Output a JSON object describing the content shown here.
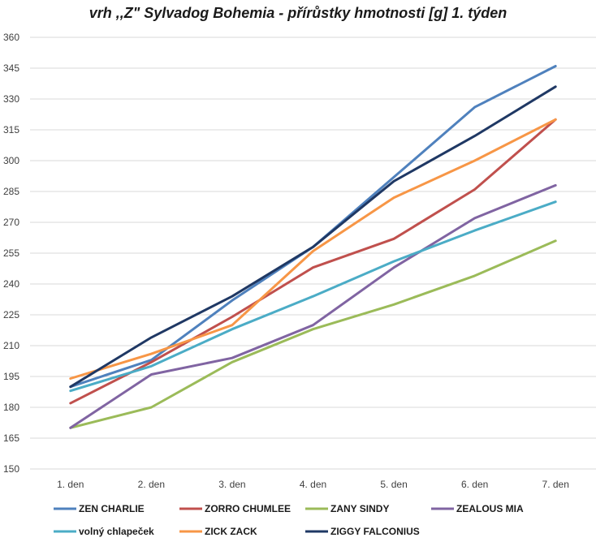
{
  "chart_data": {
    "type": "line",
    "title": "vrh ,,Z\" Sylvadog Bohemia - přírůstky hmotnosti  [g]  1. týden",
    "xlabel": "",
    "ylabel": "",
    "categories": [
      "1. den",
      "2. den",
      "3. den",
      "4. den",
      "5. den",
      "6. den",
      "7. den"
    ],
    "ylim": [
      150,
      360
    ],
    "yticks": [
      150,
      165,
      180,
      195,
      210,
      225,
      240,
      255,
      270,
      285,
      300,
      315,
      330,
      345,
      360
    ],
    "grid": true,
    "legend_position": "bottom",
    "series": [
      {
        "name": "ZEN CHARLIE",
        "color": "#4f81bd",
        "values": [
          190,
          203,
          232,
          258,
          292,
          326,
          346
        ]
      },
      {
        "name": "ZORRO CHUMLEE",
        "color": "#c0504d",
        "values": [
          182,
          202,
          224,
          248,
          262,
          286,
          320
        ]
      },
      {
        "name": "ZANY SINDY",
        "color": "#9bbb59",
        "values": [
          170,
          180,
          202,
          218,
          230,
          244,
          261
        ]
      },
      {
        "name": "ZEALOUS MIA",
        "color": "#8064a2",
        "values": [
          170,
          196,
          204,
          220,
          248,
          272,
          288
        ]
      },
      {
        "name": "volný chlapeček",
        "color": "#4bacc6",
        "values": [
          188,
          200,
          218,
          234,
          251,
          266,
          280
        ]
      },
      {
        "name": "ZICK ZACK",
        "color": "#f79646",
        "values": [
          194,
          206,
          220,
          256,
          282,
          300,
          320
        ]
      },
      {
        "name": "ZIGGY  FALCONIUS",
        "color": "#1f3864",
        "values": [
          190,
          214,
          234,
          258,
          290,
          312,
          336
        ]
      }
    ]
  }
}
